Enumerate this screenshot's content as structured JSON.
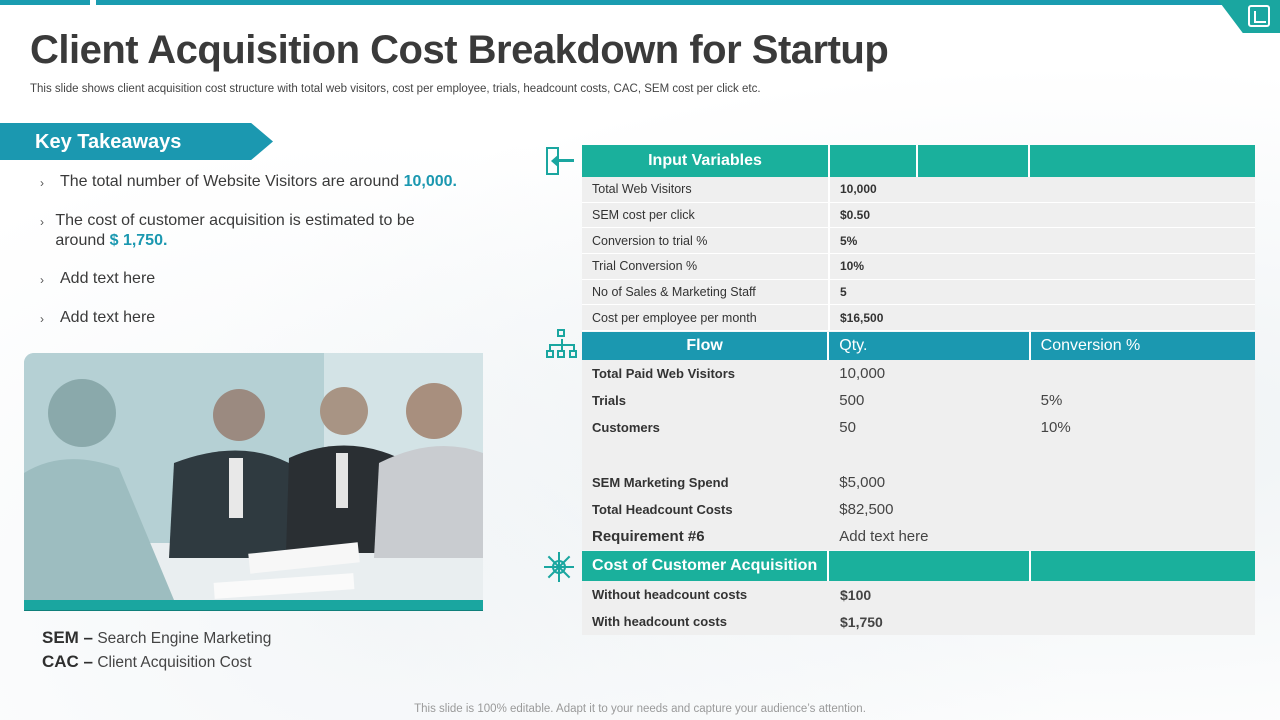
{
  "slide": {
    "title": "Client Acquisition Cost Breakdown for Startup",
    "subtitle": "This slide shows client acquisition cost structure with total web visitors, cost per employee, trials, headcount costs, CAC, SEM cost per click etc.",
    "footer": "This slide is 100% editable. Adapt it to your needs and capture your audience’s attention."
  },
  "takeaways": {
    "heading": "Key Takeaways",
    "bullets": [
      {
        "text": "The total number of Website Visitors are around ",
        "highlight": "10,000."
      },
      {
        "text": "The cost of customer acquisition is estimated to be around ",
        "highlight": "$ 1,750."
      },
      {
        "text": "Add text here",
        "highlight": ""
      },
      {
        "text": "Add text here",
        "highlight": ""
      }
    ]
  },
  "legend": [
    {
      "abbr": "SEM –",
      "full": " Search Engine Marketing"
    },
    {
      "abbr": "CAC –",
      "full": " Client Acquisition Cost"
    }
  ],
  "input_variables": {
    "heading": "Input Variables",
    "rows": [
      {
        "label": "Total Web Visitors",
        "value": "10,000"
      },
      {
        "label": "SEM cost per click",
        "value": "$0.50"
      },
      {
        "label": "Conversion  to trial %",
        "value": "5%"
      },
      {
        "label": "Trial Conversion  %",
        "value": "10%"
      },
      {
        "label": "No of Sales & Marketing Staff",
        "value": "5"
      },
      {
        "label": "Cost per employee per month",
        "value": "$16,500"
      }
    ]
  },
  "flow": {
    "headers": [
      "Flow",
      "Qty.",
      "Conversion %"
    ],
    "rows": [
      {
        "label": "Total Paid Web Visitors",
        "qty": "10,000",
        "conv": ""
      },
      {
        "label": "Trials",
        "qty": "500",
        "conv": "5%"
      },
      {
        "label": "Customers",
        "qty": "50",
        "conv": "10%"
      },
      {
        "label": "",
        "qty": "",
        "conv": ""
      },
      {
        "label": "SEM Marketing Spend",
        "qty": "$5,000",
        "conv": ""
      },
      {
        "label": "Total Headcount Costs",
        "qty": "$82,500",
        "conv": ""
      },
      {
        "label": "Requirement #6",
        "qty": "Add text here",
        "conv": ""
      }
    ]
  },
  "cac": {
    "heading": "Cost of Customer Acquisition",
    "rows": [
      {
        "label": "Without headcount costs",
        "value": "$100"
      },
      {
        "label": "With headcount costs",
        "value": "$1,750"
      }
    ]
  },
  "colors": {
    "teal": "#1ab09c",
    "blue": "#1b98b0",
    "row_bg": "#efefef"
  }
}
